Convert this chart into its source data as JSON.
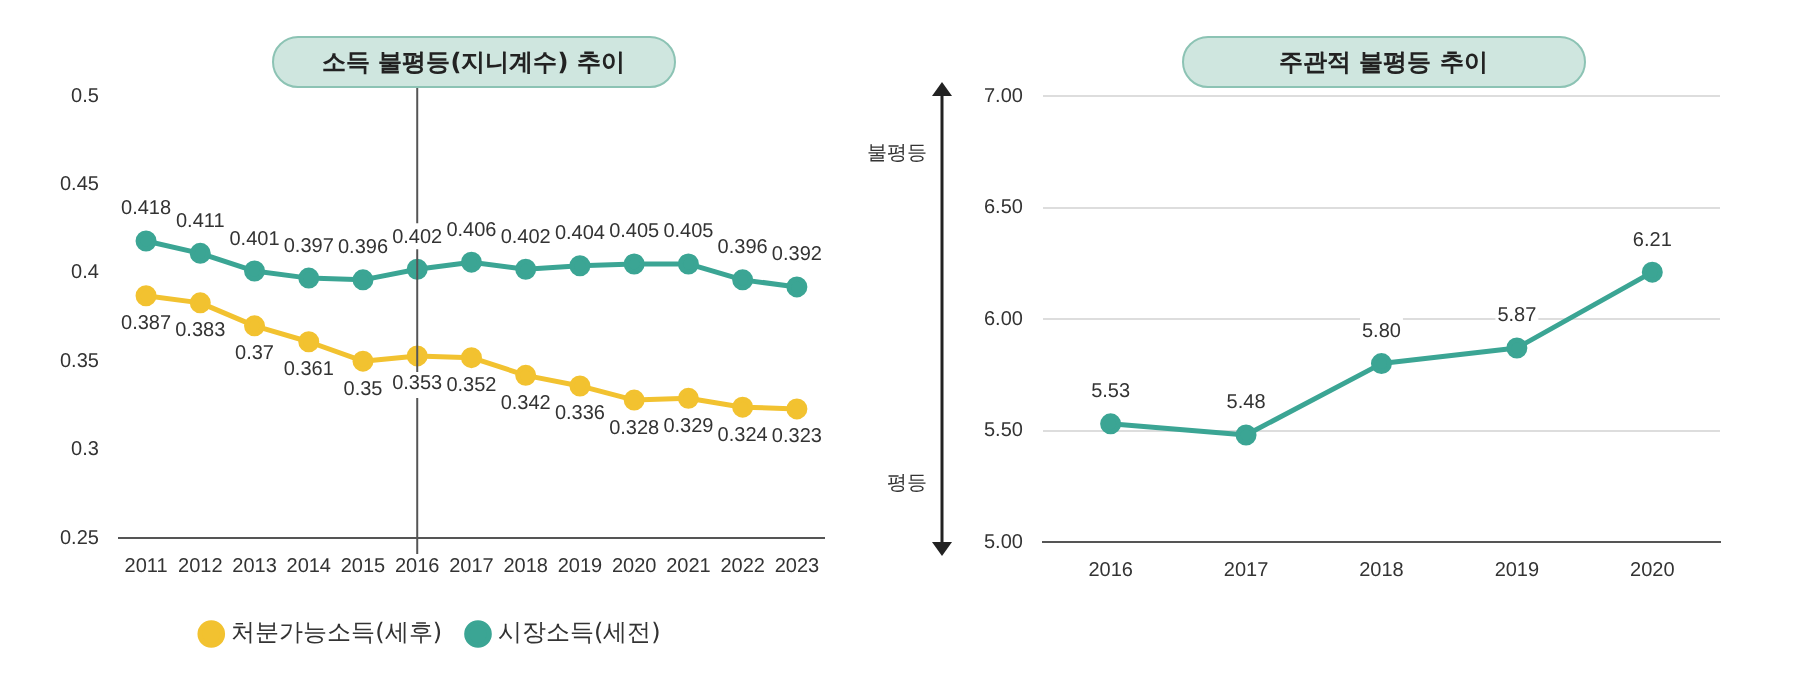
{
  "chart_data": [
    {
      "type": "line",
      "title": "소득 불평등(지니계수) 추이",
      "categories": [
        "2011",
        "2012",
        "2013",
        "2014",
        "2015",
        "2016",
        "2017",
        "2018",
        "2019",
        "2020",
        "2021",
        "2022",
        "2023"
      ],
      "series": [
        {
          "name": "처분가능소득(세후)",
          "color": "#f2c230",
          "values": [
            0.387,
            0.383,
            0.37,
            0.361,
            0.35,
            0.353,
            0.352,
            0.342,
            0.336,
            0.328,
            0.329,
            0.324,
            0.323
          ]
        },
        {
          "name": "시장소득(세전)",
          "color": "#3ba594",
          "values": [
            0.418,
            0.411,
            0.401,
            0.397,
            0.396,
            0.402,
            0.406,
            0.402,
            0.404,
            0.405,
            0.405,
            0.396,
            0.392
          ]
        }
      ],
      "ylim": [
        0.25,
        0.5
      ],
      "yticks": [
        0.25,
        0.3,
        0.35,
        0.4,
        0.45,
        0.5
      ],
      "grid": false,
      "legend": "bottom",
      "marker": "circle",
      "data_labels": true,
      "ref_lines": [
        {
          "axis": "x",
          "value": "2016",
          "color": "#555555"
        }
      ]
    },
    {
      "type": "line",
      "title": "주관적 불평등 추이",
      "categories": [
        "2016",
        "2017",
        "2018",
        "2019",
        "2020"
      ],
      "series": [
        {
          "color": "#3ba594",
          "values": [
            5.53,
            5.48,
            5.8,
            5.87,
            6.21
          ],
          "value_labels": [
            "5.53",
            "5.48",
            "5.80",
            "5.87",
            "6.21"
          ]
        }
      ],
      "ylim": [
        5,
        7
      ],
      "yticks": [
        {
          "value": 5,
          "label": "5.00"
        },
        {
          "value": 5.5,
          "label": "5.50"
        },
        {
          "value": 6,
          "label": "6.00"
        },
        {
          "value": 6.5,
          "label": "6.50"
        },
        {
          "value": 7,
          "label": "7.00"
        }
      ],
      "grid": "y",
      "legend": false,
      "marker": "circle",
      "annotations": [
        "불평등",
        "평등"
      ]
    }
  ]
}
